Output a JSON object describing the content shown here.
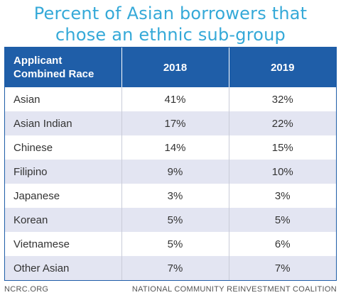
{
  "chart_data": {
    "type": "table",
    "title_lines": [
      "Percent of Asian borrowers that",
      "chose an ethnic sub-group"
    ],
    "columns": [
      "Applicant\nCombined Race",
      "2018",
      "2019"
    ],
    "rows": [
      {
        "label": "Asian",
        "values": [
          "41%",
          "32%"
        ]
      },
      {
        "label": "Asian Indian",
        "values": [
          "17%",
          "22%"
        ]
      },
      {
        "label": "Chinese",
        "values": [
          "14%",
          "15%"
        ]
      },
      {
        "label": "Filipino",
        "values": [
          "9%",
          "10%"
        ]
      },
      {
        "label": "Japanese",
        "values": [
          "3%",
          "3%"
        ]
      },
      {
        "label": "Korean",
        "values": [
          "5%",
          "5%"
        ]
      },
      {
        "label": "Vietnamese",
        "values": [
          "5%",
          "6%"
        ]
      },
      {
        "label": "Other Asian",
        "values": [
          "7%",
          "7%"
        ]
      }
    ],
    "header_color": "#1f5ea8",
    "stripe_color": "#e3e5f2",
    "title_color": "#35a9d8"
  },
  "header": {
    "col1_line1": "Applicant",
    "col1_line2": "Combined Race"
  },
  "footer": {
    "left": "NCRC.ORG",
    "right": "NATIONAL COMMUNITY REINVESTMENT COALITION"
  }
}
